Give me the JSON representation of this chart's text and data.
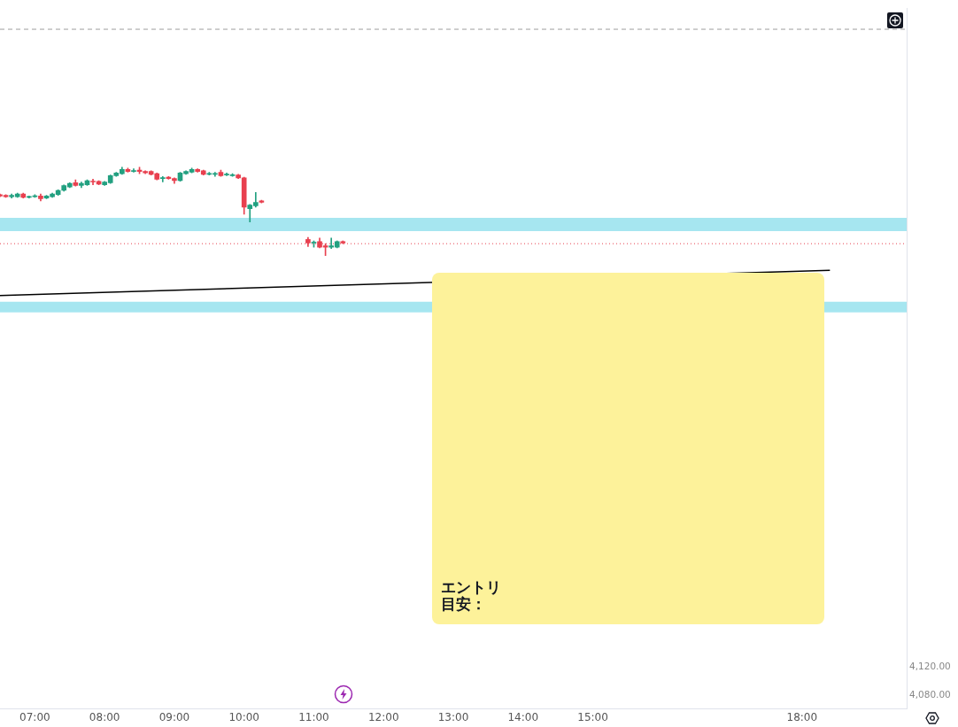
{
  "chart_data": {
    "type": "candlestick",
    "series": [
      {
        "type": "line",
        "x": [
          6.5,
          18.4
        ],
        "values": [
          4650,
          4686
        ],
        "color": "#000000"
      },
      {
        "x": [
          6.5,
          6.5833,
          6.6667,
          6.75,
          6.8333,
          6.9167,
          7,
          7.0833,
          7.1667,
          7.25,
          7.3333,
          7.4167,
          7.5,
          7.5833,
          7.6667,
          7.75,
          7.8333,
          7.9167,
          8,
          8.0833,
          8.1667,
          8.25,
          8.3333,
          8.4167,
          8.5,
          8.5833,
          8.6667,
          8.75,
          8.8333,
          8.9167,
          9,
          9.0833,
          9.1667,
          9.25,
          9.3333,
          9.4167,
          9.5,
          9.5833,
          9.6667,
          9.75,
          9.8333,
          9.9167,
          10,
          10.0833,
          10.1667,
          10.25,
          10.9167,
          11,
          11.0833,
          11.1667,
          11.25,
          11.3333,
          11.4167
        ],
        "ohlc": [
          [
            4794,
            4795,
            4791,
            4792
          ],
          [
            4793,
            4794,
            4790,
            4791
          ],
          [
            4791,
            4795,
            4789,
            4793
          ],
          [
            4791,
            4796,
            4790,
            4795
          ],
          [
            4795,
            4796,
            4789,
            4790
          ],
          [
            4790,
            4792,
            4789,
            4791
          ],
          [
            4791,
            4794,
            4790,
            4792
          ],
          [
            4792,
            4795,
            4785,
            4788
          ],
          [
            4789,
            4793,
            4788,
            4792
          ],
          [
            4791,
            4796,
            4790,
            4795
          ],
          [
            4794,
            4801,
            4793,
            4800
          ],
          [
            4800,
            4808,
            4799,
            4807
          ],
          [
            4805,
            4811,
            4804,
            4810
          ],
          [
            4811,
            4815,
            4806,
            4807
          ],
          [
            4807,
            4812,
            4804,
            4810
          ],
          [
            4808,
            4815,
            4807,
            4814
          ],
          [
            4813,
            4816,
            4808,
            4812
          ],
          [
            4813,
            4814,
            4808,
            4809
          ],
          [
            4808,
            4813,
            4807,
            4812
          ],
          [
            4811,
            4822,
            4810,
            4821
          ],
          [
            4821,
            4826,
            4820,
            4825
          ],
          [
            4824,
            4833,
            4823,
            4830
          ],
          [
            4830,
            4832,
            4826,
            4827
          ],
          [
            4827,
            4831,
            4826,
            4828
          ],
          [
            4829,
            4833,
            4824,
            4827
          ],
          [
            4827,
            4828,
            4824,
            4825
          ],
          [
            4827,
            4828,
            4822,
            4823
          ],
          [
            4824,
            4825,
            4815,
            4816
          ],
          [
            4817,
            4820,
            4812,
            4818
          ],
          [
            4819,
            4820,
            4816,
            4817
          ],
          [
            4817,
            4818,
            4810,
            4814
          ],
          [
            4814,
            4826,
            4813,
            4825
          ],
          [
            4824,
            4828,
            4823,
            4827
          ],
          [
            4826,
            4832,
            4825,
            4830
          ],
          [
            4830,
            4831,
            4826,
            4827
          ],
          [
            4828,
            4829,
            4822,
            4823
          ],
          [
            4823,
            4826,
            4822,
            4824
          ],
          [
            4823,
            4826,
            4820,
            4824
          ],
          [
            4826,
            4829,
            4820,
            4821
          ],
          [
            4822,
            4825,
            4821,
            4823
          ],
          [
            4821,
            4824,
            4820,
            4822
          ],
          [
            4822,
            4823,
            4817,
            4818
          ],
          [
            4818,
            4819,
            4766,
            4776
          ],
          [
            4774,
            4780,
            4755,
            4779
          ],
          [
            4778,
            4797,
            4776,
            4783
          ],
          [
            4785,
            4786,
            4782,
            4783
          ],
          [
            4730,
            4733,
            4720,
            4725
          ],
          [
            4725,
            4728,
            4719,
            4726
          ],
          [
            4727,
            4732,
            4718,
            4719
          ],
          [
            4721,
            4724,
            4707,
            4719
          ],
          [
            4719,
            4732,
            4717,
            4721
          ],
          [
            4719,
            4728,
            4718,
            4727
          ],
          [
            4727,
            4728,
            4724,
            4725
          ]
        ],
        "colors": [
          "#e8404f",
          "#e8404f",
          "#22a080",
          "#22a080",
          "#e8404f",
          "#22a080",
          "#22a080",
          "#e8404f",
          "#22a080",
          "#22a080",
          "#22a080",
          "#22a080",
          "#22a080",
          "#e8404f",
          "#22a080",
          "#22a080",
          "#e8404f",
          "#e8404f",
          "#22a080",
          "#22a080",
          "#22a080",
          "#22a080",
          "#e8404f",
          "#22a080",
          "#e8404f",
          "#e8404f",
          "#e8404f",
          "#e8404f",
          "#22a080",
          "#e8404f",
          "#e8404f",
          "#22a080",
          "#22a080",
          "#22a080",
          "#e8404f",
          "#e8404f",
          "#22a080",
          "#22a080",
          "#e8404f",
          "#22a080",
          "#22a080",
          "#e8404f",
          "#e8404f",
          "#22a080",
          "#22a080",
          "#e8404f",
          "#e8404f",
          "#22a080",
          "#e8404f",
          "#e8404f",
          "#22a080",
          "#22a080",
          "#e8404f"
        ]
      }
    ],
    "xlim": [
      6.5,
      19.5
    ],
    "xticks": [
      {
        "value": 7,
        "label": "07:00"
      },
      {
        "value": 8,
        "label": "08:00"
      },
      {
        "value": 9,
        "label": "09:00"
      },
      {
        "value": 10,
        "label": "10:00"
      },
      {
        "value": 11,
        "label": "11:00"
      },
      {
        "value": 12,
        "label": "12:00"
      },
      {
        "value": 13,
        "label": "13:00"
      },
      {
        "value": 14,
        "label": "14:00"
      },
      {
        "value": 15,
        "label": "15:00"
      },
      {
        "value": 18,
        "label": "18:00"
      }
    ],
    "ylim": [
      4060,
      5060
    ],
    "yticks": [
      {
        "value": 4080,
        "label": "4,080.00"
      },
      {
        "value": 4120,
        "label": "4,120.00"
      }
    ],
    "ref_lines": [
      {
        "axis": "y",
        "value": 4724,
        "color": "#e8404f",
        "line_style": "dotted"
      },
      {
        "axis": "y",
        "value": 5030,
        "color": "#9e9e9e",
        "line_style": "dashed"
      }
    ],
    "bands": [
      {
        "axis": "y",
        "from": 4742,
        "to": 4761,
        "color": "#a6e6f0"
      },
      {
        "axis": "y",
        "from": 4626,
        "to": 4641,
        "color": "#a6e6f0"
      }
    ],
    "annotations": [
      "エントリ",
      "目安："
    ],
    "grid": false,
    "legend": false
  }
}
